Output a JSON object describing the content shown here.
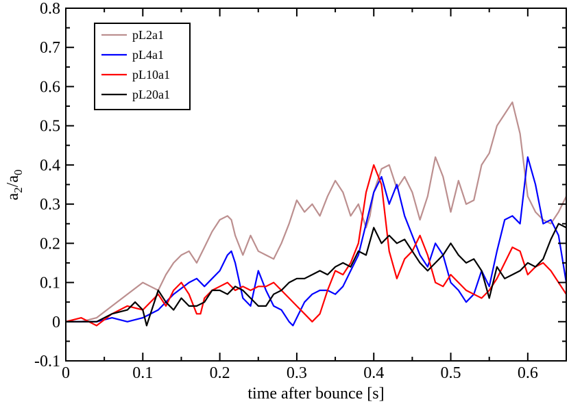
{
  "chart_data": {
    "type": "line",
    "title": "",
    "xlabel": "time after bounce [s]",
    "ylabel_main": "a",
    "ylabel_sub1": "2",
    "ylabel_slash": "/a",
    "ylabel_sub2": "0",
    "xlim": [
      0,
      0.65
    ],
    "ylim": [
      -0.1,
      0.8
    ],
    "xticks": [
      0,
      0.1,
      0.2,
      0.3,
      0.4,
      0.5,
      0.6
    ],
    "xtick_labels": [
      "0",
      "0.1",
      "0.2",
      "0.3",
      "0.4",
      "0.5",
      "0.6"
    ],
    "yticks": [
      -0.1,
      0,
      0.1,
      0.2,
      0.3,
      0.4,
      0.5,
      0.6,
      0.7,
      0.8
    ],
    "ytick_labels": [
      "-0.1",
      "0",
      "0.1",
      "0.2",
      "0.3",
      "0.4",
      "0.5",
      "0.6",
      "0.7",
      "0.8"
    ],
    "grid": false,
    "legend_position": "top-left",
    "series": [
      {
        "name": "pL2a1",
        "color": "#bc8f8f",
        "x": [
          0,
          0.02,
          0.04,
          0.06,
          0.08,
          0.1,
          0.11,
          0.12,
          0.13,
          0.14,
          0.15,
          0.16,
          0.17,
          0.18,
          0.19,
          0.2,
          0.21,
          0.215,
          0.22,
          0.23,
          0.24,
          0.25,
          0.26,
          0.27,
          0.28,
          0.29,
          0.3,
          0.31,
          0.32,
          0.33,
          0.34,
          0.35,
          0.36,
          0.37,
          0.38,
          0.39,
          0.395,
          0.4,
          0.41,
          0.42,
          0.43,
          0.44,
          0.45,
          0.46,
          0.47,
          0.48,
          0.49,
          0.5,
          0.51,
          0.52,
          0.53,
          0.54,
          0.55,
          0.56,
          0.57,
          0.58,
          0.59,
          0.6,
          0.61,
          0.62,
          0.63,
          0.64,
          0.65
        ],
        "y": [
          0,
          0,
          0.01,
          0.04,
          0.07,
          0.1,
          0.09,
          0.08,
          0.12,
          0.15,
          0.17,
          0.18,
          0.15,
          0.19,
          0.23,
          0.26,
          0.27,
          0.26,
          0.22,
          0.17,
          0.22,
          0.18,
          0.17,
          0.16,
          0.2,
          0.25,
          0.31,
          0.28,
          0.3,
          0.27,
          0.32,
          0.36,
          0.33,
          0.27,
          0.3,
          0.24,
          0.27,
          0.33,
          0.39,
          0.4,
          0.34,
          0.37,
          0.33,
          0.26,
          0.32,
          0.42,
          0.37,
          0.28,
          0.36,
          0.3,
          0.31,
          0.4,
          0.43,
          0.5,
          0.53,
          0.56,
          0.48,
          0.32,
          0.28,
          0.26,
          0.25,
          0.28,
          0.32
        ]
      },
      {
        "name": "pL4a1",
        "color": "#0000ff",
        "x": [
          0,
          0.02,
          0.04,
          0.06,
          0.08,
          0.1,
          0.12,
          0.14,
          0.16,
          0.17,
          0.18,
          0.19,
          0.2,
          0.21,
          0.215,
          0.22,
          0.23,
          0.24,
          0.25,
          0.26,
          0.27,
          0.28,
          0.29,
          0.295,
          0.3,
          0.31,
          0.32,
          0.33,
          0.34,
          0.35,
          0.36,
          0.37,
          0.38,
          0.39,
          0.4,
          0.41,
          0.42,
          0.43,
          0.44,
          0.45,
          0.46,
          0.47,
          0.48,
          0.49,
          0.5,
          0.51,
          0.52,
          0.53,
          0.54,
          0.55,
          0.56,
          0.57,
          0.58,
          0.59,
          0.6,
          0.61,
          0.62,
          0.63,
          0.64,
          0.65
        ],
        "y": [
          0,
          0,
          0,
          0.01,
          0.0,
          0.01,
          0.03,
          0.07,
          0.1,
          0.11,
          0.09,
          0.11,
          0.13,
          0.17,
          0.18,
          0.15,
          0.06,
          0.04,
          0.13,
          0.08,
          0.04,
          0.03,
          0.0,
          -0.01,
          0.01,
          0.05,
          0.07,
          0.08,
          0.08,
          0.07,
          0.09,
          0.13,
          0.17,
          0.25,
          0.33,
          0.37,
          0.3,
          0.35,
          0.27,
          0.22,
          0.17,
          0.14,
          0.2,
          0.17,
          0.1,
          0.08,
          0.05,
          0.07,
          0.13,
          0.09,
          0.18,
          0.26,
          0.27,
          0.25,
          0.42,
          0.35,
          0.25,
          0.26,
          0.22,
          0.1
        ]
      },
      {
        "name": "pL10a1",
        "color": "#ff0000",
        "x": [
          0,
          0.02,
          0.04,
          0.06,
          0.08,
          0.1,
          0.12,
          0.13,
          0.14,
          0.15,
          0.16,
          0.17,
          0.175,
          0.18,
          0.19,
          0.2,
          0.21,
          0.22,
          0.23,
          0.24,
          0.25,
          0.26,
          0.27,
          0.28,
          0.29,
          0.3,
          0.31,
          0.32,
          0.33,
          0.34,
          0.35,
          0.36,
          0.37,
          0.38,
          0.39,
          0.4,
          0.41,
          0.42,
          0.43,
          0.44,
          0.45,
          0.46,
          0.47,
          0.48,
          0.49,
          0.5,
          0.51,
          0.52,
          0.53,
          0.54,
          0.55,
          0.56,
          0.57,
          0.58,
          0.59,
          0.6,
          0.61,
          0.62,
          0.63,
          0.64,
          0.65
        ],
        "y": [
          0,
          0.01,
          -0.01,
          0.02,
          0.04,
          0.03,
          0.07,
          0.04,
          0.08,
          0.1,
          0.07,
          0.02,
          0.02,
          0.06,
          0.08,
          0.09,
          0.1,
          0.08,
          0.09,
          0.08,
          0.09,
          0.09,
          0.1,
          0.08,
          0.06,
          0.04,
          0.02,
          0.0,
          0.02,
          0.08,
          0.13,
          0.12,
          0.15,
          0.2,
          0.33,
          0.4,
          0.35,
          0.18,
          0.11,
          0.16,
          0.18,
          0.22,
          0.17,
          0.1,
          0.09,
          0.12,
          0.1,
          0.08,
          0.07,
          0.06,
          0.08,
          0.11,
          0.15,
          0.19,
          0.18,
          0.12,
          0.14,
          0.15,
          0.13,
          0.1,
          0.07
        ]
      },
      {
        "name": "pL20a1",
        "color": "#000000",
        "x": [
          0,
          0.02,
          0.04,
          0.06,
          0.08,
          0.09,
          0.1,
          0.105,
          0.11,
          0.12,
          0.13,
          0.14,
          0.15,
          0.16,
          0.17,
          0.18,
          0.19,
          0.2,
          0.21,
          0.22,
          0.23,
          0.24,
          0.25,
          0.26,
          0.27,
          0.28,
          0.29,
          0.3,
          0.31,
          0.32,
          0.33,
          0.34,
          0.35,
          0.36,
          0.37,
          0.38,
          0.39,
          0.4,
          0.41,
          0.42,
          0.43,
          0.44,
          0.45,
          0.46,
          0.47,
          0.48,
          0.49,
          0.5,
          0.51,
          0.52,
          0.53,
          0.54,
          0.55,
          0.56,
          0.57,
          0.58,
          0.59,
          0.6,
          0.61,
          0.62,
          0.63,
          0.64,
          0.65
        ],
        "y": [
          0,
          0,
          0,
          0.02,
          0.03,
          0.05,
          0.03,
          -0.01,
          0.02,
          0.08,
          0.05,
          0.03,
          0.06,
          0.04,
          0.04,
          0.05,
          0.08,
          0.08,
          0.07,
          0.09,
          0.08,
          0.06,
          0.04,
          0.04,
          0.07,
          0.08,
          0.1,
          0.11,
          0.11,
          0.12,
          0.13,
          0.12,
          0.14,
          0.15,
          0.14,
          0.18,
          0.17,
          0.24,
          0.2,
          0.22,
          0.2,
          0.21,
          0.18,
          0.15,
          0.13,
          0.15,
          0.17,
          0.2,
          0.17,
          0.15,
          0.16,
          0.13,
          0.06,
          0.14,
          0.11,
          0.12,
          0.13,
          0.15,
          0.14,
          0.16,
          0.21,
          0.25,
          0.24
        ]
      }
    ]
  }
}
